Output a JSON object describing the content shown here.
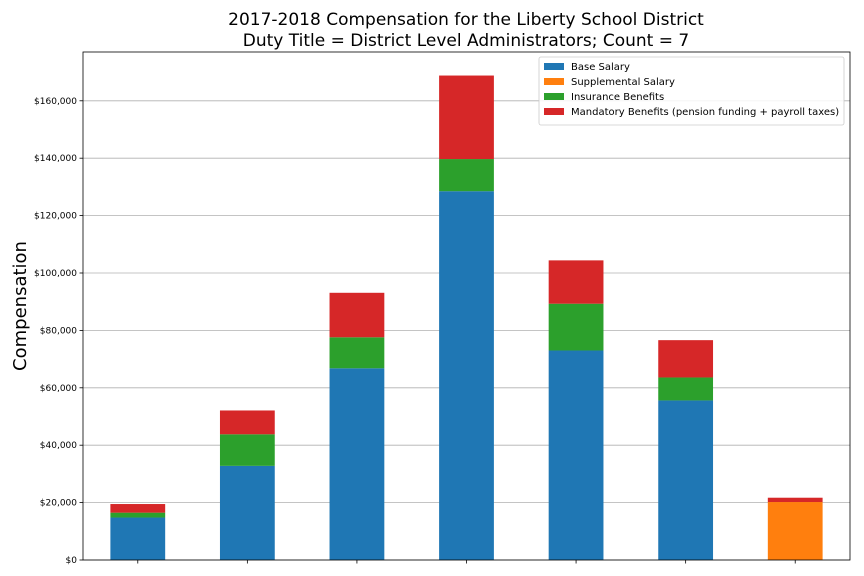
{
  "chart_data": {
    "type": "bar",
    "stacked": true,
    "title": "2017-2018 Compensation for the Liberty School District",
    "subtitle": "Duty Title = District Level Administrators; Count = 7",
    "xlabel": "",
    "ylabel": "Compensation",
    "ylim": [
      0,
      177000
    ],
    "yticks": [
      0,
      20000,
      40000,
      60000,
      80000,
      100000,
      120000,
      140000,
      160000
    ],
    "ytick_labels": [
      "$0",
      "$20,000",
      "$40,000",
      "$60,000",
      "$80,000",
      "$100,000",
      "$120,000",
      "$140,000",
      "$160,000"
    ],
    "categories": [
      "",
      "",
      "",
      "",
      "",
      "",
      ""
    ],
    "grid": "horizontal",
    "legend_position": "top-right",
    "series": [
      {
        "name": "Base Salary",
        "color": "#1f77b4",
        "values": [
          14800,
          32800,
          66800,
          128500,
          73000,
          55600,
          0
        ]
      },
      {
        "name": "Supplemental Salary",
        "color": "#ff7f0e",
        "values": [
          0,
          0,
          0,
          0,
          0,
          0,
          20200
        ]
      },
      {
        "name": "Insurance Benefits",
        "color": "#2ca02c",
        "values": [
          1700,
          11000,
          10800,
          11200,
          16300,
          8000,
          0
        ]
      },
      {
        "name": "Mandatory Benefits (pension funding + payroll taxes)",
        "color": "#d62728",
        "values": [
          3000,
          8300,
          15500,
          29100,
          15100,
          13000,
          1500
        ]
      }
    ]
  }
}
